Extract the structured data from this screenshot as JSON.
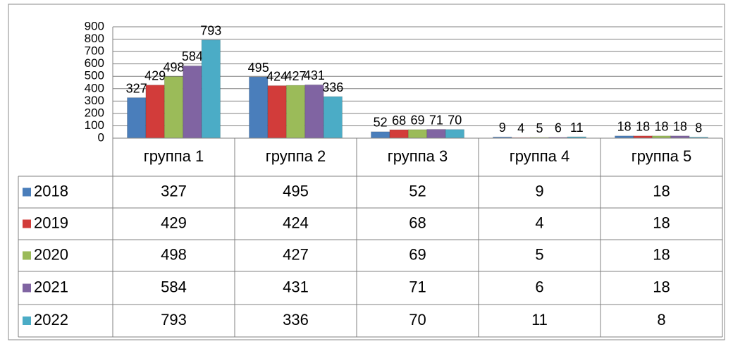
{
  "chart_data": {
    "type": "bar",
    "categories": [
      "группа 1",
      "группа 2",
      "группа 3",
      "группа 4",
      "группа 5"
    ],
    "series": [
      {
        "name": "2018",
        "color": "#4a7ebb",
        "values": [
          327,
          495,
          52,
          9,
          18
        ]
      },
      {
        "name": "2019",
        "color": "#d23c3a",
        "values": [
          429,
          424,
          68,
          4,
          18
        ]
      },
      {
        "name": "2020",
        "color": "#9bbb59",
        "values": [
          498,
          427,
          69,
          5,
          18
        ]
      },
      {
        "name": "2021",
        "color": "#8064a2",
        "values": [
          584,
          431,
          71,
          6,
          18
        ]
      },
      {
        "name": "2022",
        "color": "#4bacc6",
        "values": [
          793,
          336,
          70,
          11,
          8
        ]
      }
    ],
    "ylim": [
      0,
      900
    ],
    "yticks": [
      0,
      100,
      200,
      300,
      400,
      500,
      600,
      700,
      800,
      900
    ],
    "grid": true,
    "data_table": true
  }
}
